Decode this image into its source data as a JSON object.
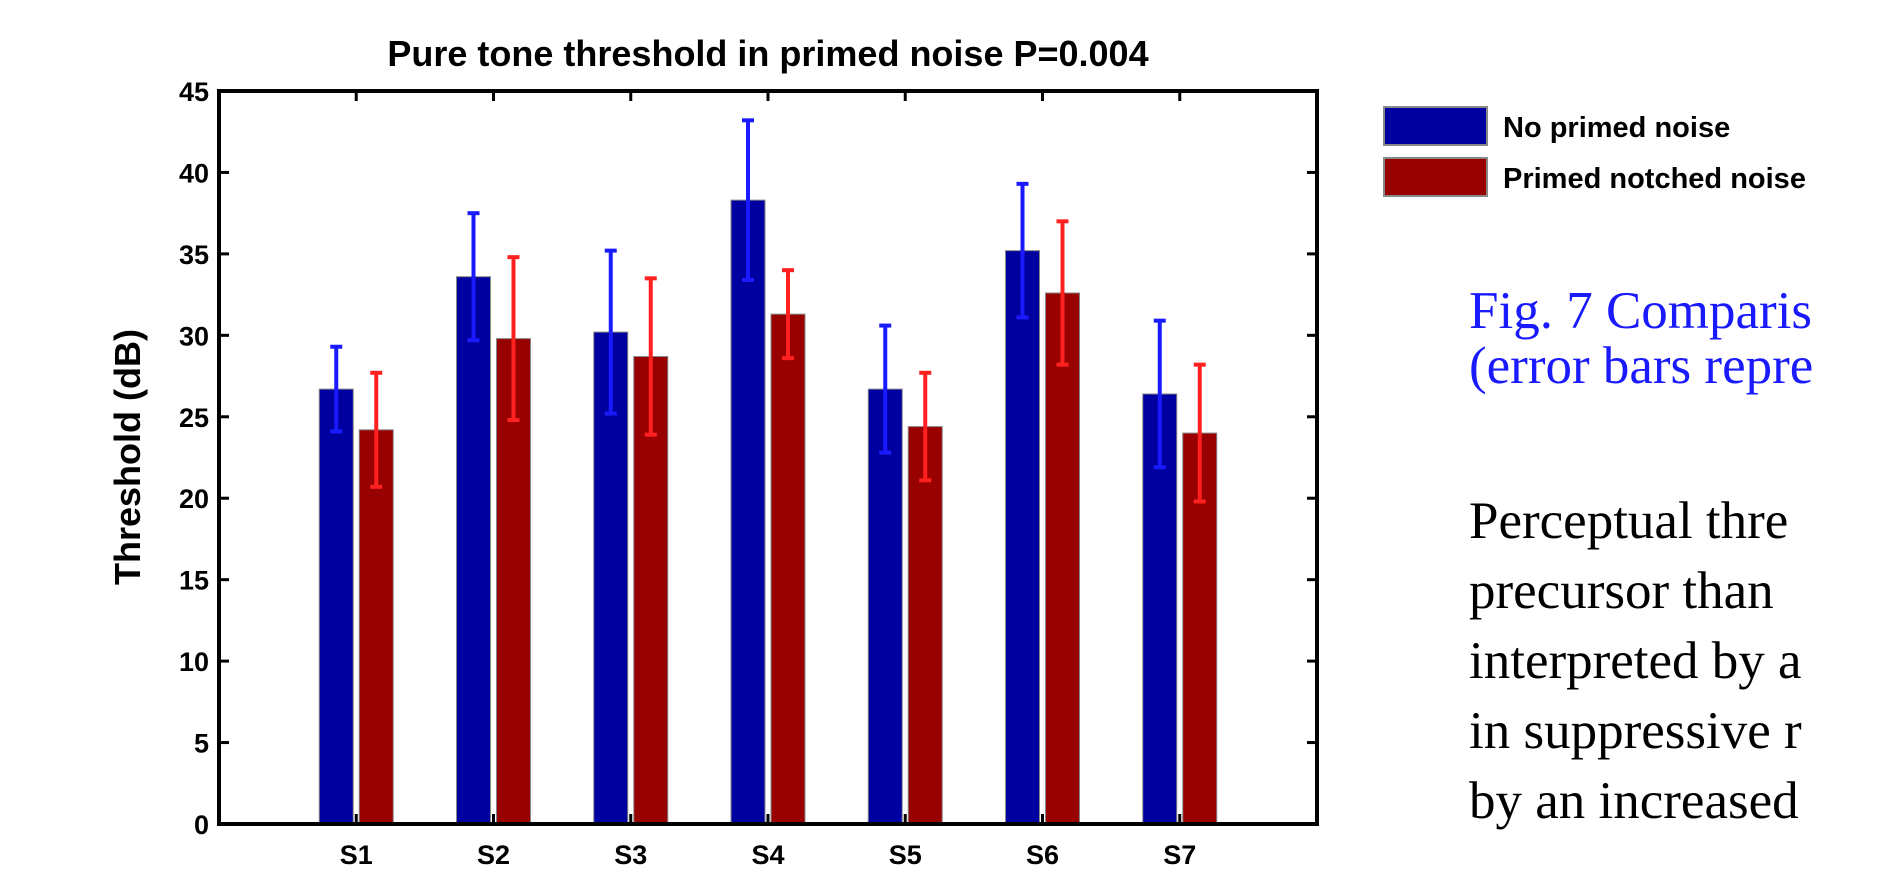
{
  "chart_data": {
    "type": "bar",
    "title": "Pure tone threshold in primed noise  P=0.004",
    "y_label": "Threshold (dB)",
    "categories": [
      "S1",
      "S2",
      "S3",
      "S4",
      "S5",
      "S6",
      "S7"
    ],
    "series": [
      {
        "name": "No primed noise",
        "color": "#0000a0",
        "error_color": "#1a1aff",
        "values": [
          26.7,
          33.6,
          30.2,
          38.3,
          26.7,
          35.2,
          26.4
        ],
        "error": [
          2.6,
          3.9,
          5.0,
          4.9,
          3.9,
          4.1,
          4.5
        ]
      },
      {
        "name": "Primed notched noise",
        "color": "#990000",
        "error_color": "#ff2020",
        "values": [
          24.2,
          29.8,
          28.7,
          31.3,
          24.4,
          32.6,
          24.0
        ],
        "error": [
          3.5,
          5.0,
          4.8,
          2.7,
          3.3,
          4.4,
          4.2
        ]
      }
    ],
    "ylim": [
      0,
      45
    ],
    "yticks": [
      0,
      5,
      10,
      15,
      20,
      25,
      30,
      35,
      40,
      45
    ],
    "legend": "outside-right"
  },
  "text": {
    "caption": [
      "Fig. 7 Comparis",
      "(error bars repre"
    ],
    "paragraph": [
      "Perceptual thre",
      "precursor than",
      "interpreted by a",
      "in suppressive r",
      "by an increased"
    ]
  }
}
